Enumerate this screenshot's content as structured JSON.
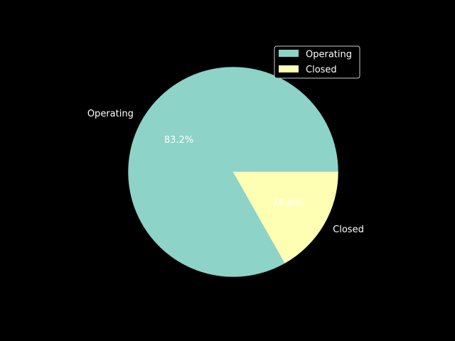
{
  "chart_data": {
    "type": "pie",
    "categories": [
      "Operating",
      "Closed"
    ],
    "values": [
      83.2,
      16.8
    ],
    "percent_labels": [
      "83.2%",
      "16.8%"
    ],
    "colors": [
      "#8dd3c7",
      "#ffffb3"
    ],
    "legend": {
      "placement": "upper-right",
      "entries": [
        "Operating",
        "Closed"
      ]
    },
    "background": "#000000",
    "text_color": "#ffffff"
  }
}
